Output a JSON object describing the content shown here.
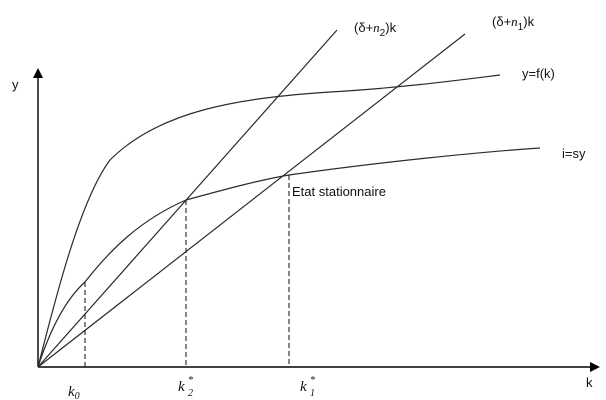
{
  "labels": {
    "y_axis": "y",
    "x_axis": "k",
    "production_curve": "y=f(k)",
    "investment_curve": "i=sy",
    "line_n2": {
      "prefix": "(δ+",
      "var": "n",
      "sub": "2",
      "suffix": ")k"
    },
    "line_n1": {
      "prefix": "(δ+",
      "var": "n",
      "sub": "1",
      "suffix": ")k"
    },
    "steady_state": "Etat stationnaire"
  },
  "ticks": {
    "k0": {
      "base": "k",
      "sub": "0"
    },
    "k2": {
      "base": "k",
      "sup": "*",
      "sub": "2"
    },
    "k1": {
      "base": "k",
      "sup": "*",
      "sub": "1"
    }
  }
}
